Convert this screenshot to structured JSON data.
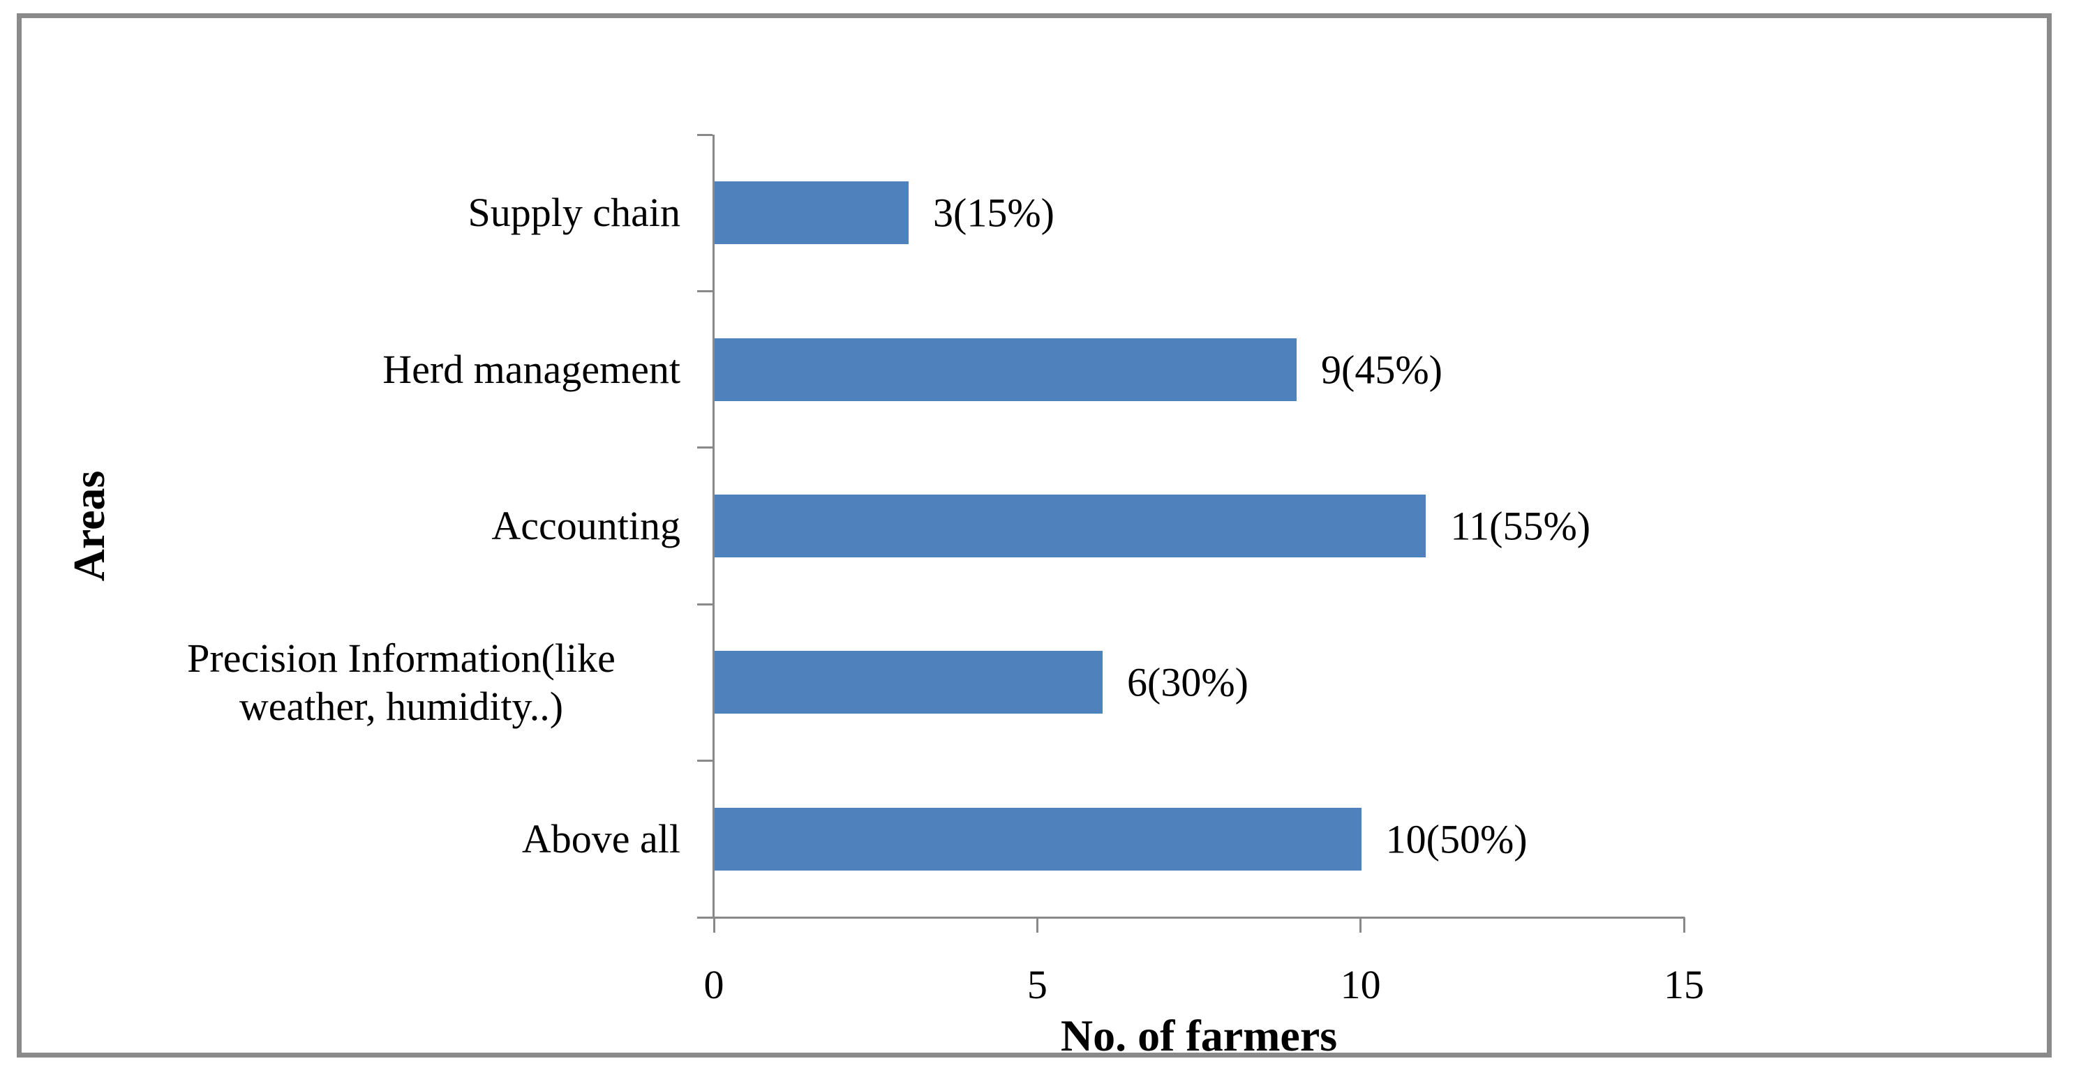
{
  "chart_data": {
    "type": "bar",
    "orientation": "horizontal",
    "title": "",
    "categories": [
      "Supply chain",
      "Herd management",
      "Accounting",
      "Precision Information(like weather, humidity..)",
      "Above all"
    ],
    "values": [
      3,
      9,
      11,
      6,
      10
    ],
    "data_labels": [
      "3(15%)",
      "9(45%)",
      "11(55%)",
      "6(30%)",
      "10(50%)"
    ],
    "xlabel": "No. of farmers",
    "ylabel": "Areas",
    "xlim": [
      0,
      15
    ],
    "xticks": [
      0,
      5,
      10,
      15
    ],
    "grid": false,
    "legend": false,
    "bar_color": "#4F81BD",
    "axis_color": "#898989",
    "border_color": "#8A8A8A",
    "background": "#FFFFFF",
    "text_color": "#000000"
  }
}
